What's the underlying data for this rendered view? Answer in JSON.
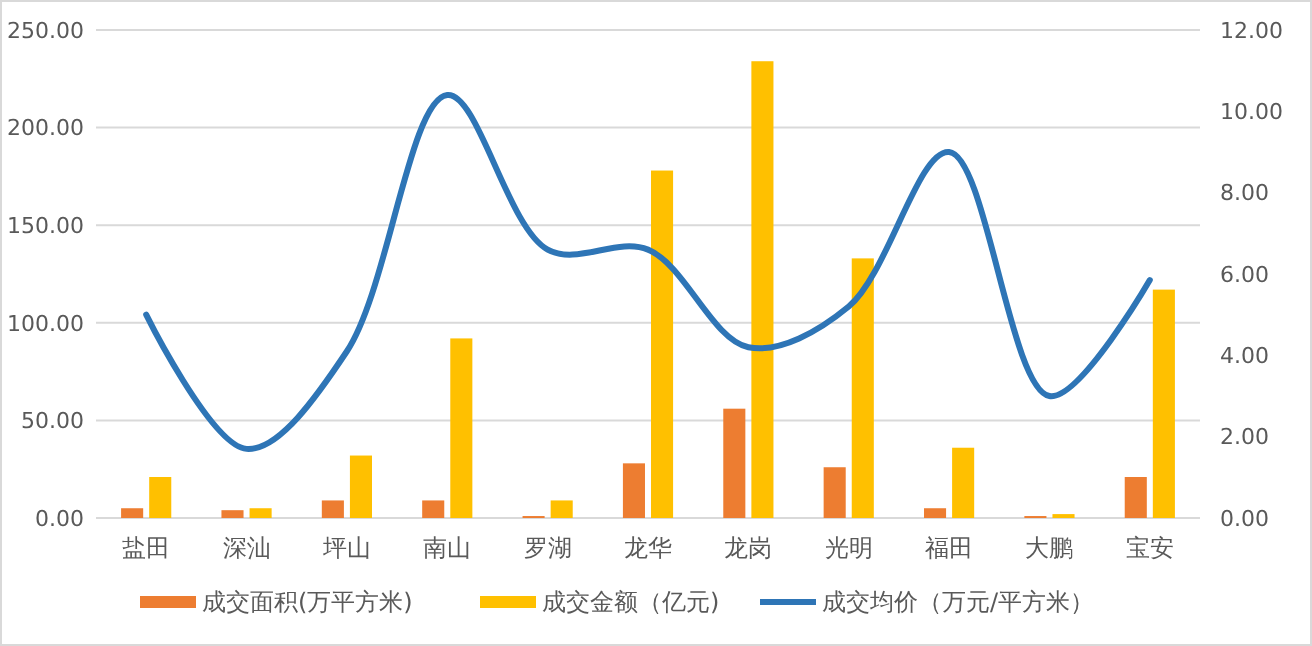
{
  "chart_data": {
    "type": "bar",
    "categories": [
      "盐田",
      "深汕",
      "坪山",
      "南山",
      "罗湖",
      "龙华",
      "龙岗",
      "光明",
      "福田",
      "大鹏",
      "宝安"
    ],
    "series": [
      {
        "name": "成交面积(万平方米)",
        "color": "#ed7d31",
        "values": [
          5,
          4,
          9,
          9,
          1,
          28,
          56,
          26,
          5,
          1,
          21
        ]
      },
      {
        "name": "成交金额（亿元)",
        "color": "#ffc000",
        "values": [
          21,
          5,
          32,
          92,
          9,
          178,
          234,
          133,
          36,
          2,
          117
        ]
      },
      {
        "name": "成交均价（万元/平方米）",
        "type": "line",
        "axis": "y2",
        "color": "#2e75b6",
        "values": [
          5.0,
          1.7,
          4.1,
          10.4,
          6.6,
          6.6,
          4.2,
          5.2,
          9.0,
          3.0,
          5.85
        ]
      }
    ],
    "ylim": [
      0,
      250
    ],
    "yticks": [
      {
        "value": 0,
        "label": "0.00"
      },
      {
        "value": 50,
        "label": "50.00"
      },
      {
        "value": 100,
        "label": "100.00"
      },
      {
        "value": 150,
        "label": "150.00"
      },
      {
        "value": 200,
        "label": "200.00"
      },
      {
        "value": 250,
        "label": "250.00"
      }
    ],
    "y2lim": [
      0,
      12
    ],
    "y2ticks": [
      {
        "value": 0,
        "label": "0.00"
      },
      {
        "value": 2,
        "label": "2.00"
      },
      {
        "value": 4,
        "label": "4.00"
      },
      {
        "value": 6,
        "label": "6.00"
      },
      {
        "value": 8,
        "label": "8.00"
      },
      {
        "value": 10,
        "label": "10.00"
      },
      {
        "value": 12,
        "label": "12.00"
      }
    ],
    "grid": "y",
    "legend": "bottom"
  }
}
